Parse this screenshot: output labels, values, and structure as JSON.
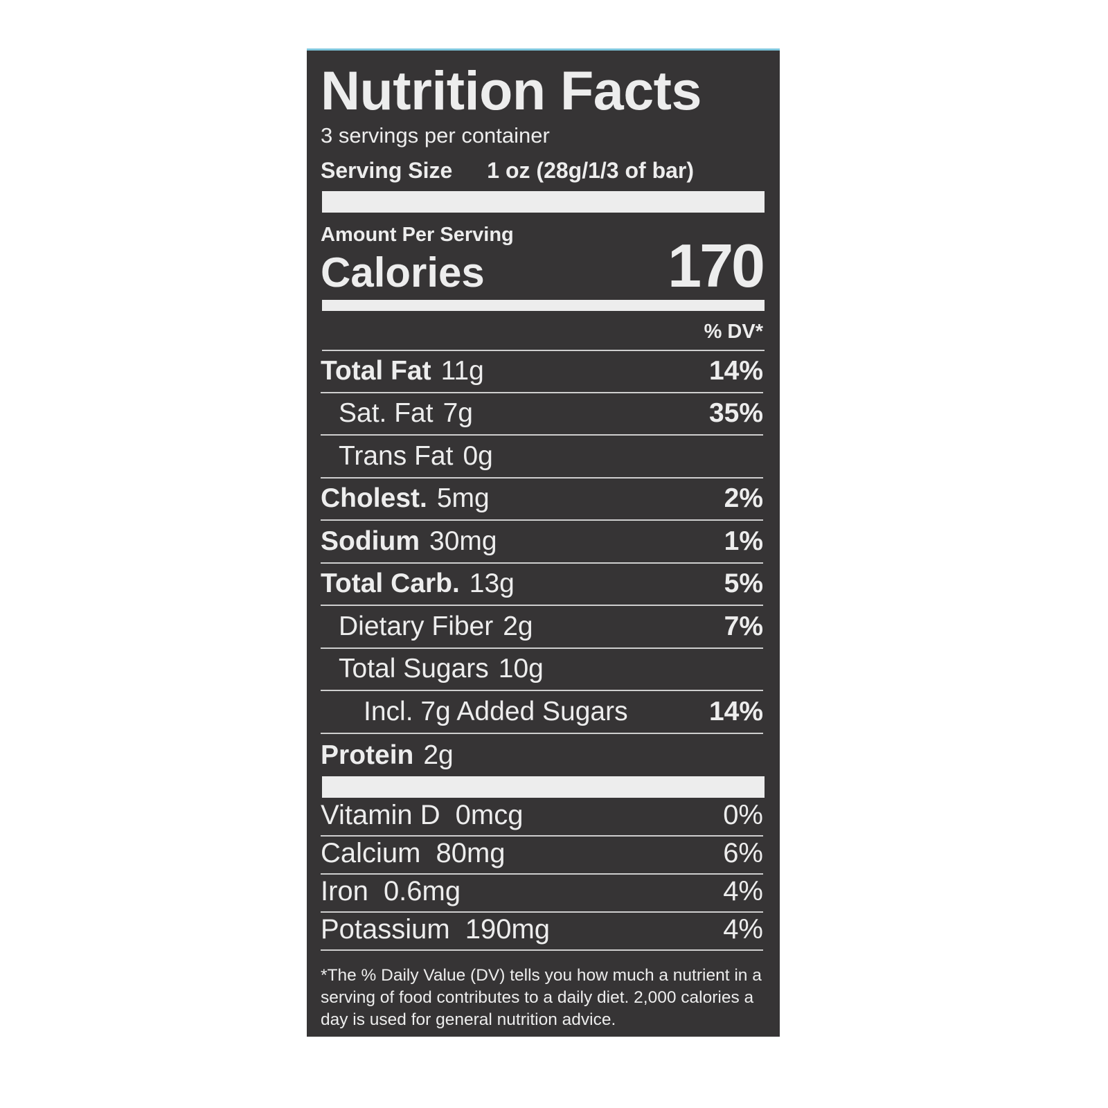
{
  "title": "Nutrition Facts",
  "servings_per_container": "3 servings per container",
  "serving_size_label": "Serving Size",
  "serving_size_value": "1 oz (28g/1/3 of bar)",
  "amount_per_serving": "Amount Per Serving",
  "calories_label": "Calories",
  "calories_value": "170",
  "dv_header": "% DV*",
  "nutrients": [
    {
      "name": "Total Fat",
      "amount": "11g",
      "dv": "14%",
      "bold": true,
      "indent": 0
    },
    {
      "name": "Sat. Fat",
      "amount": "7g",
      "dv": "35%",
      "bold": false,
      "indent": 1
    },
    {
      "name": "Trans Fat",
      "amount": "0g",
      "dv": "",
      "bold": false,
      "indent": 1
    },
    {
      "name": "Cholest.",
      "amount": "5mg",
      "dv": "2%",
      "bold": true,
      "indent": 0
    },
    {
      "name": "Sodium",
      "amount": "30mg",
      "dv": "1%",
      "bold": true,
      "indent": 0
    },
    {
      "name": "Total Carb.",
      "amount": "13g",
      "dv": "5%",
      "bold": true,
      "indent": 0
    },
    {
      "name": "Dietary Fiber",
      "amount": "2g",
      "dv": "7%",
      "bold": false,
      "indent": 1
    },
    {
      "name": "Total Sugars",
      "amount": "10g",
      "dv": "",
      "bold": false,
      "indent": 1
    },
    {
      "name": "Incl. 7g Added Sugars",
      "amount": "",
      "dv": "14%",
      "bold": false,
      "indent": 2
    },
    {
      "name": "Protein",
      "amount": "2g",
      "dv": "",
      "bold": true,
      "indent": 0
    }
  ],
  "vitamins": [
    {
      "name": "Vitamin D",
      "amount": "0mcg",
      "dv": "0%"
    },
    {
      "name": "Calcium",
      "amount": "80mg",
      "dv": "6%"
    },
    {
      "name": "Iron",
      "amount": "0.6mg",
      "dv": "4%"
    },
    {
      "name": "Potassium",
      "amount": "190mg",
      "dv": "4%"
    }
  ],
  "footnote": "*The % Daily Value (DV) tells you how much a nutrient in a serving of food contributes to a daily diet. 2,000 calories a day is used for general nutrition advice.",
  "colors": {
    "label_bg": "#363435",
    "text": "#ededed",
    "edge_accent": "#7fc6dc"
  }
}
